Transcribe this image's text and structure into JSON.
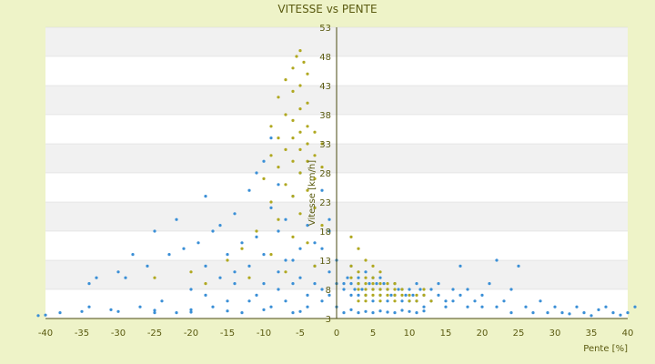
{
  "chart_data": {
    "type": "scatter",
    "title": "VITESSE vs PENTE",
    "xlabel": "Pente [%]",
    "ylabel": "Vitesse [km/h]",
    "xlim": [
      -40,
      40
    ],
    "ylim": [
      3,
      53
    ],
    "x_ticks": [
      "-40",
      "-35",
      "-30",
      "-25",
      "-20",
      "-15",
      "-10",
      "-5",
      "0",
      "5",
      "10",
      "15",
      "20",
      "25",
      "30",
      "35",
      "40"
    ],
    "y_ticks": [
      "3",
      "8",
      "13",
      "18",
      "23",
      "28",
      "33",
      "38",
      "43",
      "48",
      "53"
    ],
    "grid": true,
    "legend": "none",
    "colors": {
      "background": "#eef3c8",
      "band_light": "#ffffff",
      "band_dark": "#f1f1f1",
      "axis": "#4a4a10",
      "series_1": "#3a8fd6",
      "series_2": "#b0a820"
    },
    "series": [
      {
        "color": "#3a8fd6",
        "points": [
          [
            -41,
            3.5
          ],
          [
            -40,
            3.6
          ],
          [
            -38,
            4
          ],
          [
            -35,
            4.2
          ],
          [
            -34,
            5
          ],
          [
            -34,
            9
          ],
          [
            -33,
            10
          ],
          [
            -31,
            4.5
          ],
          [
            -30,
            11
          ],
          [
            -29,
            10
          ],
          [
            -28,
            14
          ],
          [
            -27,
            5
          ],
          [
            -26,
            12
          ],
          [
            -25,
            4
          ],
          [
            -25,
            18
          ],
          [
            -24,
            6
          ],
          [
            -23,
            14
          ],
          [
            -22,
            4
          ],
          [
            -22,
            20
          ],
          [
            -21,
            15
          ],
          [
            -20,
            8
          ],
          [
            -20,
            4.5
          ],
          [
            -19,
            16
          ],
          [
            -18,
            12
          ],
          [
            -18,
            24
          ],
          [
            -17,
            18
          ],
          [
            -17,
            5
          ],
          [
            -16,
            10
          ],
          [
            -16,
            19
          ],
          [
            -15,
            14
          ],
          [
            -15,
            6
          ],
          [
            -14,
            21
          ],
          [
            -14,
            9
          ],
          [
            -13,
            16
          ],
          [
            -13,
            4
          ],
          [
            -12,
            25
          ],
          [
            -12,
            12
          ],
          [
            -11,
            17
          ],
          [
            -11,
            7
          ],
          [
            -11,
            28
          ],
          [
            -10,
            30
          ],
          [
            -10,
            14
          ],
          [
            -10,
            9
          ],
          [
            -9,
            22
          ],
          [
            -9,
            5
          ],
          [
            -9,
            34
          ],
          [
            -8,
            18
          ],
          [
            -8,
            11
          ],
          [
            -8,
            26
          ],
          [
            -7,
            13
          ],
          [
            -7,
            6
          ],
          [
            -7,
            20
          ],
          [
            -6,
            9
          ],
          [
            -6,
            24
          ],
          [
            -6,
            4
          ],
          [
            -5,
            15
          ],
          [
            -5,
            10
          ],
          [
            -5,
            28
          ],
          [
            -4,
            7
          ],
          [
            -4,
            19
          ],
          [
            -4,
            5
          ],
          [
            -3,
            12
          ],
          [
            -3,
            9
          ],
          [
            -3,
            22
          ],
          [
            -2,
            8
          ],
          [
            -2,
            15
          ],
          [
            -2,
            6
          ],
          [
            -1,
            11
          ],
          [
            -1,
            18
          ],
          [
            -1,
            7
          ],
          [
            0,
            9
          ],
          [
            0,
            5
          ],
          [
            0,
            13
          ],
          [
            1,
            8
          ],
          [
            1,
            9
          ],
          [
            1.5,
            10
          ],
          [
            2,
            7
          ],
          [
            2,
            9
          ],
          [
            2,
            12
          ],
          [
            2.5,
            8
          ],
          [
            3,
            10
          ],
          [
            3,
            7
          ],
          [
            3,
            9
          ],
          [
            3.5,
            8
          ],
          [
            4,
            11
          ],
          [
            4,
            7
          ],
          [
            4.5,
            9
          ],
          [
            5,
            8
          ],
          [
            5,
            10
          ],
          [
            5,
            6
          ],
          [
            5.5,
            9
          ],
          [
            6,
            7
          ],
          [
            6,
            8
          ],
          [
            6,
            10
          ],
          [
            6.5,
            9
          ],
          [
            7,
            8
          ],
          [
            7,
            6
          ],
          [
            7.5,
            7
          ],
          [
            8,
            9
          ],
          [
            8,
            7
          ],
          [
            8.5,
            8
          ],
          [
            9,
            6
          ],
          [
            9,
            8
          ],
          [
            9.5,
            7
          ],
          [
            10,
            8
          ],
          [
            10,
            6
          ],
          [
            10.5,
            7
          ],
          [
            11,
            9
          ],
          [
            11,
            6
          ],
          [
            11.5,
            8
          ],
          [
            12,
            7
          ],
          [
            12,
            5
          ],
          [
            13,
            8
          ],
          [
            13,
            6
          ],
          [
            14,
            7
          ],
          [
            14,
            9
          ],
          [
            15,
            6
          ],
          [
            15,
            5
          ],
          [
            16,
            8
          ],
          [
            16,
            6
          ],
          [
            17,
            7
          ],
          [
            17,
            12
          ],
          [
            18,
            5
          ],
          [
            18,
            8
          ],
          [
            19,
            6
          ],
          [
            20,
            7
          ],
          [
            20,
            5
          ],
          [
            21,
            9
          ],
          [
            22,
            5
          ],
          [
            22,
            13
          ],
          [
            23,
            6
          ],
          [
            24,
            4
          ],
          [
            24,
            8
          ],
          [
            25,
            12
          ],
          [
            26,
            5
          ],
          [
            27,
            4
          ],
          [
            28,
            6
          ],
          [
            29,
            4
          ],
          [
            30,
            5
          ],
          [
            31,
            4
          ],
          [
            32,
            3.8
          ],
          [
            33,
            5
          ],
          [
            34,
            4
          ],
          [
            35,
            3.5
          ],
          [
            36,
            4.5
          ],
          [
            37,
            5
          ],
          [
            38,
            4
          ],
          [
            39,
            3.6
          ],
          [
            40,
            4
          ],
          [
            41,
            5
          ],
          [
            1,
            4
          ],
          [
            2,
            4.5
          ],
          [
            3,
            4
          ],
          [
            4,
            4.2
          ],
          [
            5,
            4
          ],
          [
            6,
            4.3
          ],
          [
            7,
            4.1
          ],
          [
            8,
            4
          ],
          [
            9,
            4.4
          ],
          [
            10,
            4.2
          ],
          [
            11,
            4
          ],
          [
            12,
            4.3
          ],
          [
            -5,
            4.2
          ],
          [
            -10,
            4.5
          ],
          [
            -15,
            4.3
          ],
          [
            -20,
            4.1
          ],
          [
            -25,
            4.4
          ],
          [
            -30,
            4.2
          ],
          [
            -12,
            6
          ],
          [
            -18,
            7
          ],
          [
            -8,
            8
          ],
          [
            -14,
            11
          ],
          [
            -6,
            13
          ],
          [
            -3,
            16
          ],
          [
            -1,
            20
          ],
          [
            -2,
            25
          ]
        ]
      },
      {
        "color": "#b0a820",
        "points": [
          [
            -5,
            49
          ],
          [
            -5.5,
            48
          ],
          [
            -4.5,
            47
          ],
          [
            -6,
            46
          ],
          [
            -4,
            45
          ],
          [
            -7,
            44
          ],
          [
            -5,
            43
          ],
          [
            -6,
            42
          ],
          [
            -8,
            41
          ],
          [
            -4,
            40
          ],
          [
            -5,
            39
          ],
          [
            -7,
            38
          ],
          [
            -6,
            37
          ],
          [
            -9,
            36
          ],
          [
            -4,
            36
          ],
          [
            -5,
            35
          ],
          [
            -3,
            35
          ],
          [
            -8,
            34
          ],
          [
            -6,
            34
          ],
          [
            -4,
            33
          ],
          [
            -2,
            33
          ],
          [
            -7,
            32
          ],
          [
            -5,
            32
          ],
          [
            -3,
            31
          ],
          [
            -9,
            31
          ],
          [
            -6,
            30
          ],
          [
            -4,
            30
          ],
          [
            -2,
            29
          ],
          [
            -8,
            29
          ],
          [
            -5,
            28
          ],
          [
            -3,
            27
          ],
          [
            -10,
            27
          ],
          [
            -7,
            26
          ],
          [
            -4,
            25
          ],
          [
            -6,
            24
          ],
          [
            -9,
            23
          ],
          [
            -3,
            22
          ],
          [
            -5,
            21
          ],
          [
            -8,
            20
          ],
          [
            -2,
            19
          ],
          [
            -11,
            18
          ],
          [
            -6,
            17
          ],
          [
            -4,
            16
          ],
          [
            -13,
            15
          ],
          [
            -9,
            14
          ],
          [
            -15,
            13
          ],
          [
            -3,
            12
          ],
          [
            -20,
            11
          ],
          [
            -7,
            11
          ],
          [
            -25,
            10
          ],
          [
            -12,
            10
          ],
          [
            -18,
            9
          ],
          [
            2,
            12
          ],
          [
            2,
            10
          ],
          [
            3,
            11
          ],
          [
            3,
            9
          ],
          [
            3,
            8
          ],
          [
            4,
            10
          ],
          [
            4,
            9
          ],
          [
            4,
            8
          ],
          [
            4,
            7
          ],
          [
            5,
            10
          ],
          [
            5,
            9
          ],
          [
            5,
            8
          ],
          [
            5,
            7
          ],
          [
            6,
            9
          ],
          [
            6,
            8
          ],
          [
            6,
            7
          ],
          [
            6,
            6
          ],
          [
            7,
            9
          ],
          [
            7,
            8
          ],
          [
            7,
            7
          ],
          [
            8,
            8
          ],
          [
            8,
            7
          ],
          [
            8,
            6
          ],
          [
            9,
            8
          ],
          [
            9,
            7
          ],
          [
            10,
            7
          ],
          [
            10,
            6
          ],
          [
            11,
            7
          ],
          [
            11,
            6
          ],
          [
            12,
            7
          ],
          [
            12,
            8
          ],
          [
            13,
            6
          ],
          [
            2,
            17
          ],
          [
            3,
            15
          ],
          [
            4,
            13
          ],
          [
            5,
            12
          ],
          [
            6,
            11
          ],
          [
            3,
            6
          ],
          [
            4,
            6
          ],
          [
            8,
            9
          ]
        ]
      }
    ]
  }
}
